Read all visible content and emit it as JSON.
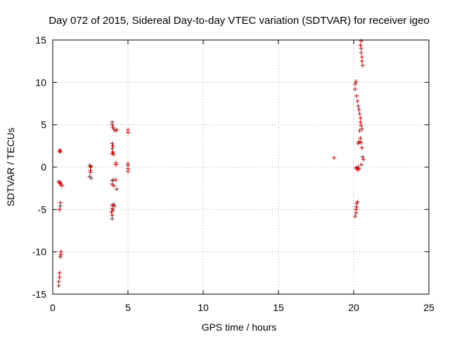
{
  "chart_data": {
    "type": "scatter",
    "title": "Day 072 of 2015, Sidereal Day-to-day VTEC variation (SDTVAR) for receiver igeo",
    "xlabel": "GPS time / hours",
    "ylabel": "SDTVAR / TECUs",
    "xlim": [
      0,
      25
    ],
    "ylim": [
      -15,
      15
    ],
    "x_ticks": [
      0,
      5,
      10,
      15,
      20,
      25
    ],
    "y_ticks": [
      -15,
      -10,
      -5,
      0,
      5,
      10,
      15
    ],
    "x_tick_labels": [
      "0",
      "5",
      "10",
      "15",
      "20",
      "25"
    ],
    "y_tick_labels": [
      "-15",
      "-10",
      "-5",
      "0",
      "5",
      "10",
      "15"
    ],
    "grid": true,
    "marker": "+",
    "series": [
      {
        "name": "SDTVAR",
        "color": "#e00000",
        "points": [
          [
            0.45,
            1.9
          ],
          [
            0.5,
            2.0
          ],
          [
            0.5,
            1.8
          ],
          [
            0.4,
            -1.7
          ],
          [
            0.45,
            -1.9
          ],
          [
            0.5,
            -1.8
          ],
          [
            0.55,
            -2.0
          ],
          [
            0.6,
            -2.2
          ],
          [
            0.5,
            -4.2
          ],
          [
            0.5,
            -4.6
          ],
          [
            0.45,
            -5.0
          ],
          [
            0.55,
            -10.0
          ],
          [
            0.55,
            -10.3
          ],
          [
            0.5,
            -10.6
          ],
          [
            0.45,
            -12.5
          ],
          [
            0.45,
            -13.0
          ],
          [
            0.4,
            -13.5
          ],
          [
            0.4,
            -14.0
          ],
          [
            2.45,
            0.2
          ],
          [
            2.55,
            0.1
          ],
          [
            2.5,
            0.0
          ],
          [
            2.5,
            -0.4
          ],
          [
            2.5,
            -0.6
          ],
          [
            2.45,
            -1.1
          ],
          [
            2.55,
            -1.3
          ],
          [
            3.95,
            5.3
          ],
          [
            3.95,
            5.0
          ],
          [
            4.0,
            4.7
          ],
          [
            4.05,
            4.5
          ],
          [
            4.15,
            4.3
          ],
          [
            4.25,
            4.4
          ],
          [
            3.95,
            2.8
          ],
          [
            4.0,
            2.5
          ],
          [
            3.95,
            2.2
          ],
          [
            4.0,
            1.8
          ],
          [
            3.95,
            1.6
          ],
          [
            4.05,
            1.5
          ],
          [
            4.2,
            0.5
          ],
          [
            4.2,
            0.3
          ],
          [
            3.95,
            -1.6
          ],
          [
            4.05,
            -1.5
          ],
          [
            4.2,
            -1.5
          ],
          [
            3.95,
            -2.0
          ],
          [
            4.05,
            -2.2
          ],
          [
            4.25,
            -2.6
          ],
          [
            3.95,
            -4.5
          ],
          [
            4.05,
            -4.4
          ],
          [
            4.1,
            -4.6
          ],
          [
            3.95,
            -4.9
          ],
          [
            4.0,
            -5.1
          ],
          [
            3.9,
            -5.3
          ],
          [
            3.95,
            -5.7
          ],
          [
            3.95,
            -6.1
          ],
          [
            5.0,
            4.4
          ],
          [
            5.0,
            4.1
          ],
          [
            5.0,
            0.4
          ],
          [
            5.0,
            0.2
          ],
          [
            5.0,
            -0.2
          ],
          [
            5.0,
            -0.5
          ],
          [
            18.7,
            1.1
          ],
          [
            20.15,
            -0.1
          ],
          [
            20.25,
            -0.3
          ],
          [
            20.2,
            -0.1
          ],
          [
            20.3,
            0.0
          ],
          [
            20.35,
            -0.2
          ],
          [
            20.2,
            -4.3
          ],
          [
            20.25,
            -4.1
          ],
          [
            20.2,
            -4.7
          ],
          [
            20.15,
            -5.0
          ],
          [
            20.15,
            -5.4
          ],
          [
            20.1,
            -5.8
          ],
          [
            20.1,
            9.8
          ],
          [
            20.15,
            10.1
          ],
          [
            20.1,
            9.2
          ],
          [
            20.2,
            8.4
          ],
          [
            20.25,
            7.8
          ],
          [
            20.3,
            7.2
          ],
          [
            20.35,
            6.8
          ],
          [
            20.4,
            6.3
          ],
          [
            20.45,
            5.8
          ],
          [
            20.45,
            5.3
          ],
          [
            20.5,
            4.9
          ],
          [
            20.55,
            4.5
          ],
          [
            20.4,
            4.3
          ],
          [
            20.35,
            3.0
          ],
          [
            20.3,
            2.8
          ],
          [
            20.45,
            3.4
          ],
          [
            20.5,
            2.9
          ],
          [
            20.55,
            2.3
          ],
          [
            20.6,
            1.2
          ],
          [
            20.65,
            0.9
          ],
          [
            20.5,
            0.3
          ],
          [
            20.5,
            14.9
          ],
          [
            20.45,
            14.4
          ],
          [
            20.5,
            14.0
          ],
          [
            20.5,
            13.5
          ],
          [
            20.55,
            13.0
          ],
          [
            20.55,
            12.5
          ],
          [
            20.6,
            12.0
          ]
        ]
      }
    ]
  }
}
